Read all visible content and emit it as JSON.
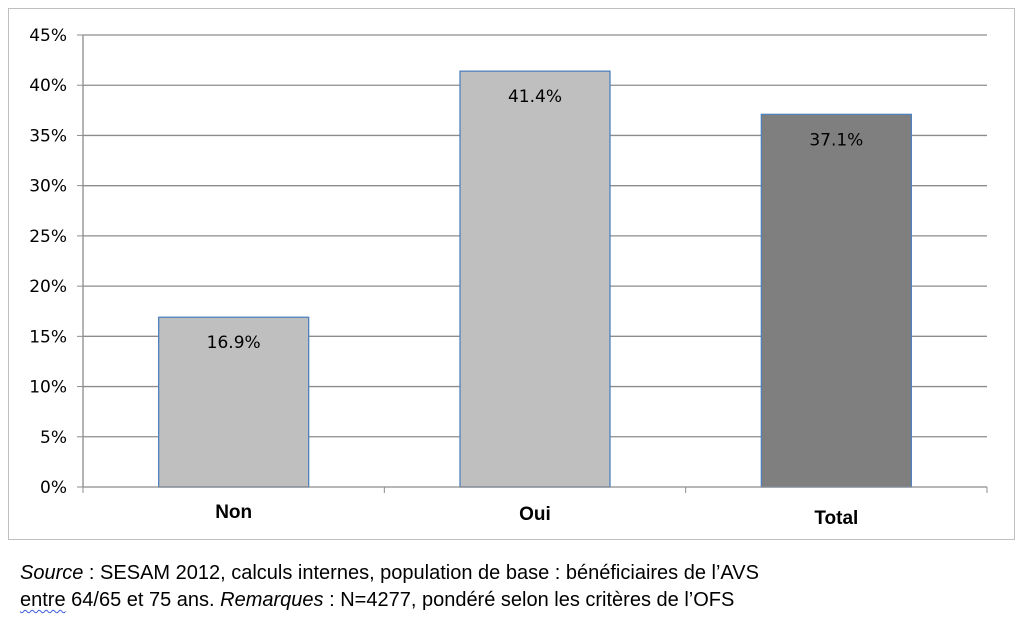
{
  "chart_data": {
    "type": "bar",
    "categories": [
      "Non",
      "Oui",
      "Total"
    ],
    "values": [
      16.9,
      41.4,
      37.1
    ],
    "data_labels": [
      "16.9%",
      "41.4%",
      "37.1%"
    ],
    "ylim": [
      0,
      45
    ],
    "yticks": [
      "0%",
      "5%",
      "10%",
      "15%",
      "20%",
      "25%",
      "30%",
      "35%",
      "40%",
      "45%"
    ],
    "ytick_values": [
      0,
      5,
      10,
      15,
      20,
      25,
      30,
      35,
      40,
      45
    ],
    "grid": true,
    "bar_colors": [
      "#bfbfbf",
      "#bfbfbf",
      "#7f7f7f"
    ],
    "bar_edge_color": "#4f81bd",
    "gridline_color": "#8c8c8c"
  },
  "caption": {
    "source_label": "Source",
    "source_text": " : SESAM 2012, calculs internes, population de base : bénéficiaires de l’AVS",
    "line2_start": "entre",
    "line2_mid": " 64/65 et 75 ans. ",
    "remarks_label": "Remarques",
    "remarks_text": " : N=4277, pondéré selon les critères de l’OFS"
  }
}
